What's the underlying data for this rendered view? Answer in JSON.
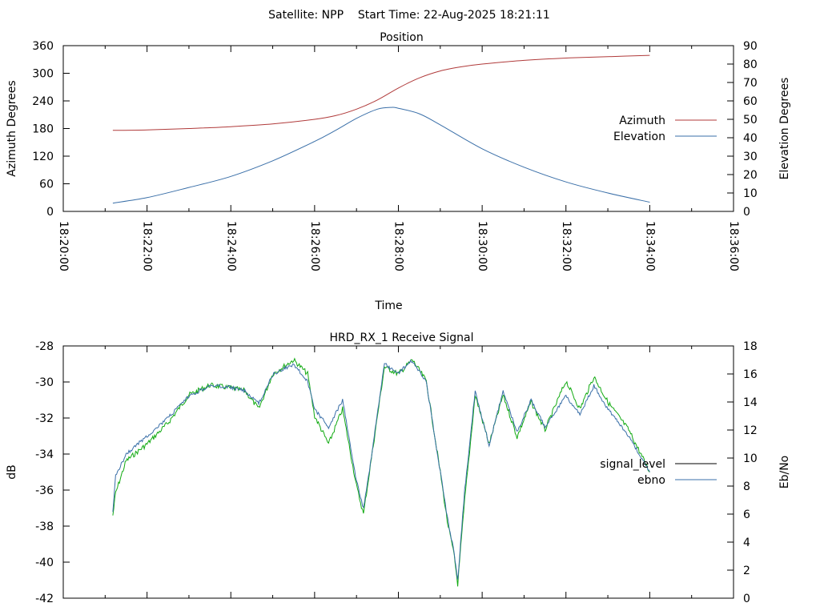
{
  "page_title": "Satellite: NPP    Start Time: 22-Aug-2025 18:21:11",
  "colors": {
    "azimuth": "#b03a3a",
    "elevation": "#3a6fa8",
    "signal_level": "#000000",
    "ebno_green": "#11aa11",
    "ebno_blue": "#3a6fa8"
  },
  "chart_data": [
    {
      "type": "line",
      "title": "Position",
      "xlabel": "Time",
      "ylabel": "Azimuth Degrees",
      "y2label": "Elevation Degrees",
      "x_tick_labels": [
        "18:20:00",
        "18:22:00",
        "18:24:00",
        "18:26:00",
        "18:28:00",
        "18:30:00",
        "18:32:00",
        "18:34:00",
        "18:36:00"
      ],
      "xlim": [
        "18:20:00",
        "18:36:00"
      ],
      "ylim": [
        0,
        360
      ],
      "y2lim": [
        0,
        90
      ],
      "y_ticks": [
        "0",
        "60",
        "120",
        "180",
        "240",
        "300",
        "360"
      ],
      "y2_ticks": [
        "0",
        "10",
        "20",
        "30",
        "40",
        "50",
        "60",
        "70",
        "80",
        "90"
      ],
      "legend_position": "right",
      "series": [
        {
          "name": "Azimuth",
          "axis": "left",
          "points": [
            [
              "18:21:11",
              176
            ],
            [
              "18:22:00",
              177
            ],
            [
              "18:23:00",
              180
            ],
            [
              "18:24:00",
              184
            ],
            [
              "18:25:00",
              190
            ],
            [
              "18:26:00",
              200
            ],
            [
              "18:26:30",
              208
            ],
            [
              "18:27:00",
              222
            ],
            [
              "18:27:30",
              242
            ],
            [
              "18:28:00",
              268
            ],
            [
              "18:28:30",
              290
            ],
            [
              "18:29:00",
              305
            ],
            [
              "18:29:30",
              314
            ],
            [
              "18:30:00",
              320
            ],
            [
              "18:31:00",
              328
            ],
            [
              "18:32:00",
              333
            ],
            [
              "18:33:00",
              336
            ],
            [
              "18:34:00",
              339
            ]
          ]
        },
        {
          "name": "Elevation",
          "axis": "right",
          "points": [
            [
              "18:21:11",
              4.5
            ],
            [
              "18:22:00",
              7.5
            ],
            [
              "18:23:00",
              13
            ],
            [
              "18:24:00",
              19
            ],
            [
              "18:25:00",
              27.5
            ],
            [
              "18:26:00",
              38
            ],
            [
              "18:26:30",
              44
            ],
            [
              "18:27:00",
              50.5
            ],
            [
              "18:27:30",
              55.5
            ],
            [
              "18:27:50",
              56.5
            ],
            [
              "18:28:00",
              56
            ],
            [
              "18:28:30",
              53
            ],
            [
              "18:29:00",
              47
            ],
            [
              "18:30:00",
              34
            ],
            [
              "18:31:00",
              24
            ],
            [
              "18:32:00",
              16
            ],
            [
              "18:33:00",
              10
            ],
            [
              "18:34:00",
              5
            ]
          ]
        }
      ]
    },
    {
      "type": "line",
      "title": "HRD_RX_1 Receive Signal",
      "ylabel": "dB",
      "y2label": "Eb/No",
      "xlim": [
        "18:20:00",
        "18:36:00"
      ],
      "ylim": [
        -42,
        -28
      ],
      "y2lim": [
        0,
        18
      ],
      "y_ticks": [
        "-42",
        "-40",
        "-38",
        "-36",
        "-34",
        "-32",
        "-30",
        "-28"
      ],
      "y2_ticks": [
        "0",
        "2",
        "4",
        "6",
        "8",
        "10",
        "12",
        "14",
        "16",
        "18"
      ],
      "legend_position": "right",
      "series": [
        {
          "name": "signal_level",
          "axis": "left",
          "points": [
            [
              "18:21:11",
              -37.3
            ],
            [
              "18:21:15",
              -35.2
            ],
            [
              "18:21:30",
              -34.0
            ],
            [
              "18:22:00",
              -33.0
            ],
            [
              "18:22:30",
              -32.0
            ],
            [
              "18:23:00",
              -30.8
            ],
            [
              "18:23:30",
              -30.2
            ],
            [
              "18:24:00",
              -30.3
            ],
            [
              "18:24:20",
              -30.5
            ],
            [
              "18:24:40",
              -31.2
            ],
            [
              "18:25:00",
              -29.6
            ],
            [
              "18:25:30",
              -29.0
            ],
            [
              "18:25:50",
              -30.0
            ],
            [
              "18:26:00",
              -31.5
            ],
            [
              "18:26:20",
              -32.5
            ],
            [
              "18:26:40",
              -31.0
            ],
            [
              "18:27:00",
              -35.5
            ],
            [
              "18:27:10",
              -37.0
            ],
            [
              "18:27:20",
              -34.5
            ],
            [
              "18:27:40",
              -29.0
            ],
            [
              "18:28:00",
              -29.5
            ],
            [
              "18:28:20",
              -28.8
            ],
            [
              "18:28:40",
              -30.0
            ],
            [
              "18:29:00",
              -35.0
            ],
            [
              "18:29:10",
              -37.5
            ],
            [
              "18:29:20",
              -39.5
            ],
            [
              "18:29:25",
              -41.0
            ],
            [
              "18:29:35",
              -36.0
            ],
            [
              "18:29:50",
              -30.5
            ],
            [
              "18:30:10",
              -33.5
            ],
            [
              "18:30:30",
              -30.5
            ],
            [
              "18:30:50",
              -32.8
            ],
            [
              "18:31:10",
              -31.0
            ],
            [
              "18:31:30",
              -32.5
            ],
            [
              "18:32:00",
              -30.8
            ],
            [
              "18:32:20",
              -31.8
            ],
            [
              "18:32:40",
              -30.2
            ],
            [
              "18:33:00",
              -31.5
            ],
            [
              "18:33:30",
              -33.0
            ],
            [
              "18:34:00",
              -35.0
            ]
          ]
        },
        {
          "name": "ebno",
          "axis": "right",
          "points": [
            [
              "18:21:11",
              5.9
            ],
            [
              "18:21:15",
              7.5
            ],
            [
              "18:21:30",
              9.8
            ],
            [
              "18:22:00",
              11.0
            ],
            [
              "18:22:30",
              12.5
            ],
            [
              "18:23:00",
              14.5
            ],
            [
              "18:23:30",
              15.2
            ],
            [
              "18:24:00",
              15.0
            ],
            [
              "18:24:20",
              14.8
            ],
            [
              "18:24:40",
              13.5
            ],
            [
              "18:25:00",
              16.0
            ],
            [
              "18:25:30",
              17.0
            ],
            [
              "18:25:50",
              16.0
            ],
            [
              "18:26:00",
              13.0
            ],
            [
              "18:26:20",
              11.0
            ],
            [
              "18:26:40",
              13.5
            ],
            [
              "18:27:00",
              8.0
            ],
            [
              "18:27:10",
              6.0
            ],
            [
              "18:27:20",
              9.5
            ],
            [
              "18:27:40",
              16.5
            ],
            [
              "18:28:00",
              16.0
            ],
            [
              "18:28:20",
              17.0
            ],
            [
              "18:28:40",
              15.5
            ],
            [
              "18:29:00",
              9.0
            ],
            [
              "18:29:10",
              5.5
            ],
            [
              "18:29:20",
              3.0
            ],
            [
              "18:29:25",
              1.0
            ],
            [
              "18:29:35",
              7.0
            ],
            [
              "18:29:50",
              14.5
            ],
            [
              "18:30:10",
              11.0
            ],
            [
              "18:30:30",
              14.5
            ],
            [
              "18:30:50",
              11.5
            ],
            [
              "18:31:10",
              14.0
            ],
            [
              "18:31:30",
              12.0
            ],
            [
              "18:32:00",
              15.5
            ],
            [
              "18:32:20",
              13.5
            ],
            [
              "18:32:40",
              15.8
            ],
            [
              "18:33:00",
              14.0
            ],
            [
              "18:33:30",
              12.0
            ],
            [
              "18:34:00",
              9.0
            ]
          ]
        }
      ]
    }
  ]
}
